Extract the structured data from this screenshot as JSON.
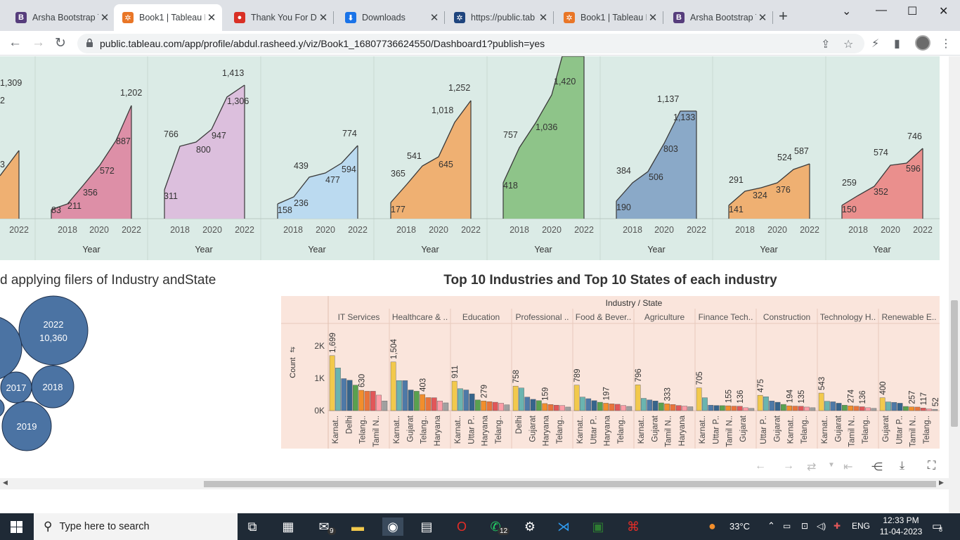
{
  "browser": {
    "tabs": [
      {
        "title": "Arsha Bootstrap T",
        "fav": "B",
        "color": "#563d7c"
      },
      {
        "title": "Book1 | Tableau P",
        "fav": "✲",
        "color": "#e97627",
        "active": true
      },
      {
        "title": "Thank You For Do",
        "fav": "●",
        "color": "#d93025"
      },
      {
        "title": "Downloads",
        "fav": "⬇",
        "color": "#1a73e8"
      },
      {
        "title": "https://public.tab",
        "fav": "✲",
        "color": "#1f457e"
      },
      {
        "title": "Book1 | Tableau P",
        "fav": "✲",
        "color": "#e97627"
      },
      {
        "title": "Arsha Bootstrap T",
        "fav": "B",
        "color": "#563d7c"
      }
    ],
    "url": "public.tableau.com/app/profile/abdul.rasheed.y/viz/Book1_16807736624550/Dashboard1?publish=yes"
  },
  "top_panels": [
    {
      "color": "#efb072",
      "labels": [
        [
          "1,309",
          0,
          122
        ],
        [
          "2",
          0,
          147
        ],
        [
          "3",
          0,
          238
        ]
      ],
      "poly": [
        [
          0,
          170
        ],
        [
          27,
          134
        ]
      ],
      "ticks": [
        "2022"
      ]
    },
    {
      "color": "#dd8fa7",
      "labels": [
        [
          "83",
          73,
          303
        ],
        [
          "211",
          96,
          297
        ],
        [
          "356",
          118,
          278
        ],
        [
          "572",
          142,
          247
        ],
        [
          "887",
          165,
          205
        ],
        [
          "1,202",
          171,
          136
        ]
      ],
      "poly": [
        [
          73,
          218
        ],
        [
          96,
          210
        ],
        [
          118,
          184
        ],
        [
          142,
          155
        ],
        [
          165,
          120
        ],
        [
          187,
          70
        ]
      ],
      "ticks": [
        "2018",
        "2020",
        "2022"
      ]
    },
    {
      "color": "#dcbfdd",
      "labels": [
        [
          "311",
          233,
          283
        ],
        [
          "766",
          233,
          195
        ],
        [
          "800",
          279,
          217
        ],
        [
          "947",
          301,
          197
        ],
        [
          "1,306",
          323,
          148
        ],
        [
          "1,413",
          316,
          108
        ]
      ],
      "poly": [
        [
          234,
          190
        ],
        [
          256,
          128
        ],
        [
          279,
          122
        ],
        [
          301,
          104
        ],
        [
          323,
          58
        ],
        [
          348,
          41
        ]
      ],
      "ticks": [
        "2018",
        "2020",
        "2022"
      ]
    },
    {
      "color": "#bbdaf0",
      "labels": [
        [
          "158",
          395,
          303
        ],
        [
          "236",
          418,
          293
        ],
        [
          "439",
          418,
          240
        ],
        [
          "477",
          463,
          260
        ],
        [
          "594",
          486,
          245
        ],
        [
          "774",
          487,
          194
        ]
      ],
      "poly": [
        [
          395,
          210
        ],
        [
          418,
          200
        ],
        [
          440,
          172
        ],
        [
          463,
          166
        ],
        [
          486,
          152
        ],
        [
          509,
          127
        ]
      ],
      "ticks": [
        "2018",
        "2020",
        "2022"
      ]
    },
    {
      "color": "#efb072",
      "labels": [
        [
          "177",
          556,
          302
        ],
        [
          "365",
          556,
          251
        ],
        [
          "541",
          579,
          226
        ],
        [
          "645",
          624,
          238
        ],
        [
          "1,018",
          614,
          161
        ],
        [
          "1,252",
          638,
          129
        ]
      ],
      "poly": [
        [
          556,
          208
        ],
        [
          579,
          182
        ],
        [
          601,
          156
        ],
        [
          624,
          143
        ],
        [
          647,
          94
        ],
        [
          670,
          63
        ]
      ],
      "ticks": [
        "2018",
        "2020",
        "2022"
      ]
    },
    {
      "color": "#8ec489",
      "labels": [
        [
          "418",
          716,
          268
        ],
        [
          "757",
          716,
          196
        ],
        [
          "1,036",
          762,
          185
        ],
        [
          "1,420",
          788,
          120
        ]
      ],
      "poly": [
        [
          716,
          180
        ],
        [
          739,
          130
        ],
        [
          762,
          95
        ],
        [
          785,
          55
        ],
        [
          800,
          0
        ],
        [
          831,
          0
        ]
      ],
      "ticks": [
        "2018",
        "2020",
        "2022"
      ]
    },
    {
      "color": "#8aa9c8",
      "labels": [
        [
          "190",
          877,
          299
        ],
        [
          "384",
          877,
          247
        ],
        [
          "506",
          923,
          256
        ],
        [
          "803",
          944,
          216
        ],
        [
          "1,133",
          958,
          171
        ],
        [
          "1,137",
          935,
          145
        ]
      ],
      "poly": [
        [
          877,
          206
        ],
        [
          900,
          180
        ],
        [
          922,
          164
        ],
        [
          945,
          124
        ],
        [
          968,
          78
        ],
        [
          991,
          78
        ]
      ],
      "ticks": [
        "2018",
        "2020",
        "2022"
      ]
    },
    {
      "color": "#efb072",
      "labels": [
        [
          "141",
          1037,
          302
        ],
        [
          "291",
          1037,
          260
        ],
        [
          "324",
          1071,
          282
        ],
        [
          "376",
          1104,
          274
        ],
        [
          "524",
          1106,
          228
        ],
        [
          "587",
          1130,
          219
        ]
      ],
      "poly": [
        [
          1037,
          212
        ],
        [
          1060,
          192
        ],
        [
          1083,
          187
        ],
        [
          1106,
          180
        ],
        [
          1129,
          161
        ],
        [
          1152,
          153
        ]
      ],
      "ticks": [
        "2018",
        "2020",
        "2022"
      ]
    },
    {
      "color": "#ea8f8d",
      "labels": [
        [
          "150",
          1198,
          302
        ],
        [
          "259",
          1198,
          264
        ],
        [
          "352",
          1243,
          277
        ],
        [
          "574",
          1243,
          221
        ],
        [
          "596",
          1289,
          244
        ],
        [
          "746",
          1291,
          198
        ]
      ],
      "poly": [
        [
          1198,
          212
        ],
        [
          1221,
          198
        ],
        [
          1244,
          185
        ],
        [
          1267,
          155
        ],
        [
          1290,
          152
        ],
        [
          1313,
          131
        ]
      ],
      "ticks": [
        "2018",
        "2020",
        "2022"
      ]
    }
  ],
  "axis_title": "Year",
  "left_title": "d applying filers of Industry andState",
  "right_title": "Top 10 Industries and Top 10 States of each industry",
  "bubbles": [
    {
      "label": "2022",
      "sub": "10,360",
      "cx": 76,
      "cy": 50,
      "r": 49
    },
    {
      "label": "",
      "sub": "",
      "cx": -15,
      "cy": 75,
      "r": 46
    },
    {
      "label": "2017",
      "sub": "",
      "cx": 23,
      "cy": 131,
      "r": 22
    },
    {
      "label": "2018",
      "sub": "",
      "cx": 75,
      "cy": 130,
      "r": 30
    },
    {
      "label": "2019",
      "sub": "",
      "cx": 38,
      "cy": 186,
      "r": 35
    },
    {
      "label": "",
      "sub": "",
      "cx": -8,
      "cy": 160,
      "r": 14
    }
  ],
  "bar_chart": {
    "header": "Industry / State",
    "ylabel": "Count",
    "yticks": [
      "2K",
      "1K",
      "0K"
    ],
    "industries": [
      "IT Services",
      "Healthcare & ..",
      "Education",
      "Professional ..",
      "Food & Bever..",
      "Agriculture",
      "Finance Tech..",
      "Construction",
      "Technology H..",
      "Renewable E.."
    ],
    "groups": [
      {
        "values": [
          1699,
          1320,
          990,
          940,
          790,
          630,
          600,
          600,
          480,
          300
        ],
        "labels": [
          "1,699",
          "630"
        ],
        "states": [
          "Karnat..",
          "Delhi",
          "Telang..",
          "Tamil N.."
        ]
      },
      {
        "values": [
          1504,
          930,
          930,
          640,
          600,
          500,
          403,
          400,
          300,
          240
        ],
        "labels": [
          "1,504",
          "403"
        ],
        "states": [
          "Karnat..",
          "Gujarat",
          "Telang..",
          "Haryana"
        ]
      },
      {
        "values": [
          911,
          680,
          640,
          520,
          330,
          300,
          279,
          260,
          230,
          180
        ],
        "labels": [
          "911",
          "279"
        ],
        "states": [
          "Karnat..",
          "Uttar P..",
          "Haryana",
          "Telang.."
        ]
      },
      {
        "values": [
          758,
          700,
          420,
          350,
          310,
          220,
          190,
          170,
          159,
          110
        ],
        "labels": [
          "758",
          "159"
        ],
        "states": [
          "Delhi",
          "Gujarat",
          "Haryana",
          "Telang.."
        ]
      },
      {
        "values": [
          789,
          420,
          370,
          310,
          260,
          230,
          210,
          197,
          160,
          130
        ],
        "labels": [
          "789",
          "197"
        ],
        "states": [
          "Karnat..",
          "Uttar P..",
          "Haryana",
          "Telang.."
        ]
      },
      {
        "values": [
          796,
          380,
          333,
          300,
          240,
          210,
          190,
          160,
          140,
          120
        ],
        "labels": [
          "796",
          "333"
        ],
        "states": [
          "Karnat..",
          "Gujarat",
          "Tamil N..",
          "Haryana"
        ]
      },
      {
        "values": [
          705,
          400,
          170,
          160,
          155,
          150,
          140,
          136,
          90,
          70
        ],
        "labels": [
          "705",
          "155",
          "136"
        ],
        "states": [
          "Karnat..",
          "Uttar P..",
          "Tamil N..",
          "Gujarat"
        ]
      },
      {
        "values": [
          475,
          430,
          300,
          260,
          194,
          150,
          140,
          135,
          110,
          90
        ],
        "labels": [
          "475",
          "194",
          "135"
        ],
        "states": [
          "Uttar P..",
          "Gujarat",
          "Karnat..",
          "Telang.."
        ]
      },
      {
        "values": [
          543,
          290,
          274,
          230,
          170,
          150,
          136,
          120,
          90,
          70
        ],
        "labels": [
          "543",
          "274",
          "136"
        ],
        "states": [
          "Karnat..",
          "Gujarat",
          "Tamil N..",
          "Telang.."
        ]
      },
      {
        "values": [
          400,
          270,
          257,
          230,
          130,
          117,
          110,
          80,
          52,
          40
        ],
        "labels": [
          "400",
          "257",
          "117",
          "52"
        ],
        "states": [
          "Gujarat",
          "Uttar P..",
          "Tamil N..",
          "Telang.."
        ]
      }
    ],
    "palette": [
      "#f2c94c",
      "#6ab4b0",
      "#4e79a7",
      "#36648b",
      "#59a14f",
      "#f28e2b",
      "#e8743b",
      "#e15759",
      "#ff9da7",
      "#a0a0a0"
    ]
  },
  "taskbar": {
    "search_placeholder": "Type here to search",
    "weather": "33°C",
    "lang": "ENG",
    "time": "12:33 PM",
    "date": "11-04-2023",
    "notif_count": "8",
    "mail_badge": "9",
    "whatsapp_badge": "12"
  }
}
